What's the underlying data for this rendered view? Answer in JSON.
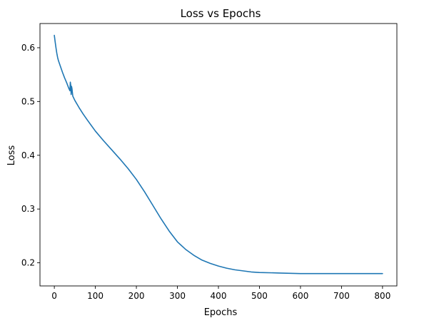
{
  "chart_data": {
    "type": "line",
    "title": "Loss vs Epochs",
    "xlabel": "Epochs",
    "ylabel": "Loss",
    "xlim": [
      -35,
      835
    ],
    "ylim": [
      0.157,
      0.645
    ],
    "xticks": [
      0,
      100,
      200,
      300,
      400,
      500,
      600,
      700,
      800
    ],
    "yticks": [
      0.2,
      0.3,
      0.4,
      0.5,
      0.6
    ],
    "ytick_labels": [
      "0.2",
      "0.3",
      "0.4",
      "0.5",
      "0.6"
    ],
    "grid": false,
    "legend": "none",
    "series": [
      {
        "color": "#1f77b4",
        "x": [
          0,
          2,
          4,
          6,
          8,
          10,
          15,
          20,
          25,
          30,
          35,
          38,
          39,
          40,
          41,
          42,
          43,
          45,
          50,
          60,
          70,
          80,
          100,
          120,
          140,
          160,
          180,
          200,
          220,
          240,
          260,
          280,
          300,
          320,
          340,
          360,
          380,
          400,
          420,
          440,
          460,
          480,
          500,
          550,
          600,
          650,
          700,
          750,
          800
        ],
        "y": [
          0.623,
          0.611,
          0.6,
          0.59,
          0.582,
          0.576,
          0.565,
          0.554,
          0.544,
          0.535,
          0.525,
          0.52,
          0.536,
          0.53,
          0.513,
          0.528,
          0.524,
          0.51,
          0.502,
          0.489,
          0.477,
          0.466,
          0.445,
          0.427,
          0.41,
          0.393,
          0.375,
          0.355,
          0.332,
          0.307,
          0.282,
          0.259,
          0.239,
          0.225,
          0.214,
          0.205,
          0.199,
          0.194,
          0.19,
          0.187,
          0.185,
          0.183,
          0.182,
          0.181,
          0.18,
          0.18,
          0.18,
          0.18,
          0.18
        ]
      }
    ]
  }
}
